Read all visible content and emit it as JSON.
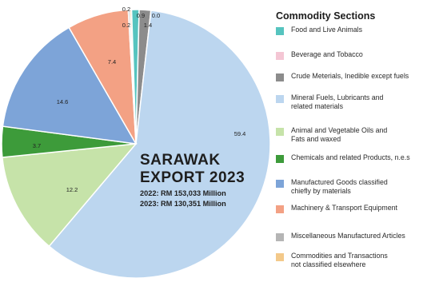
{
  "chart_data": {
    "type": "pie",
    "center_title_lines": [
      "SARAWAK",
      "EXPORT 2023"
    ],
    "center_sub_lines": [
      "2022: RM 153,033 Million",
      "2023: RM 130,351 Million"
    ],
    "slices": [
      {
        "label": "0.2",
        "value": 0.2
      },
      {
        "label": "0.9",
        "value": 0.9
      },
      {
        "label": "0.0",
        "value": 0.0
      },
      {
        "label": "1.4",
        "value": 1.4
      },
      {
        "label": "59.4",
        "value": 59.4
      },
      {
        "label": "12.2",
        "value": 12.2
      },
      {
        "label": "3.7",
        "value": 3.7
      },
      {
        "label": "14.6",
        "value": 14.6
      },
      {
        "label": "7.4",
        "value": 7.4
      },
      {
        "label": "0.2",
        "value": 0.2
      }
    ],
    "slice_colors": [
      "#f3c98a",
      "#56c4bf",
      "#f4c6d4",
      "#8c8c8c",
      "#bcd6ef",
      "#c6e3a9",
      "#3d9b3a",
      "#7da4d8",
      "#f3a184",
      "#b5b5b5"
    ],
    "legend": {
      "title": "Commodity Sections",
      "items": [
        {
          "label": "Food and Live Animals",
          "color": "#56c4bf"
        },
        {
          "label": "Beverage and Tobacco",
          "color": "#f4c6d4"
        },
        {
          "label": "Crude Meterials, Inedible except fuels",
          "color": "#8c8c8c"
        },
        {
          "label": "Mineral Fuels, Lubricants and\nrelated materials",
          "color": "#bcd6ef"
        },
        {
          "label": "Animal and Vegetable Oils and\nFats and waxed",
          "color": "#c6e3a9"
        },
        {
          "label": "Chemicals and related Products, n.e.s",
          "color": "#3d9b3a"
        },
        {
          "label": "Manufactured Goods classified\nchiefly by materials",
          "color": "#7da4d8"
        },
        {
          "label": "Machinery & Transport Equipment",
          "color": "#f3a184"
        },
        {
          "label": "Miscellaneous Manufactured Articles",
          "color": "#b5b5b5"
        },
        {
          "label": "Commodities and Transactions\nnot classified elsewhere",
          "color": "#f3c98a"
        }
      ]
    }
  }
}
